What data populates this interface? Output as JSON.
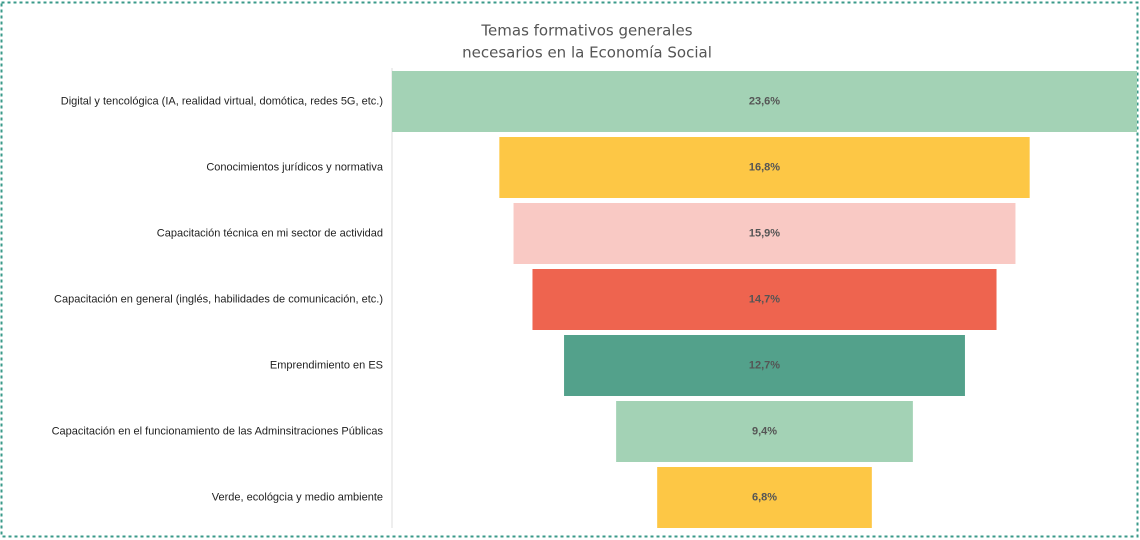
{
  "chart_data": {
    "type": "funnel",
    "title": [
      "Temas formativos generales",
      "necesarios en la Economía Social"
    ],
    "categories": [
      "Digital y tencológica (IA, realidad virtual, domótica, redes 5G, etc.)",
      "Conocimientos jurídicos y normativa",
      "Capacitación técnica en mi sector de actividad",
      "Capacitación en general (inglés, habilidades de comunicación, etc.)",
      "Emprendimiento en ES",
      "Capacitación en el funcionamiento de las Adminsitraciones Públicas",
      "Verde, ecológcia y medio ambiente"
    ],
    "values": [
      23.6,
      16.8,
      15.9,
      14.7,
      12.7,
      9.4,
      6.8
    ],
    "value_labels": [
      "23,6%",
      "16,8%",
      "15,9%",
      "14,7%",
      "12,7%",
      "9,4%",
      "6,8%"
    ],
    "colors": [
      "#a3d2b5",
      "#fdc745",
      "#f9c9c4",
      "#ee644f",
      "#53a18b",
      "#a3d2b5",
      "#fdc745"
    ]
  }
}
